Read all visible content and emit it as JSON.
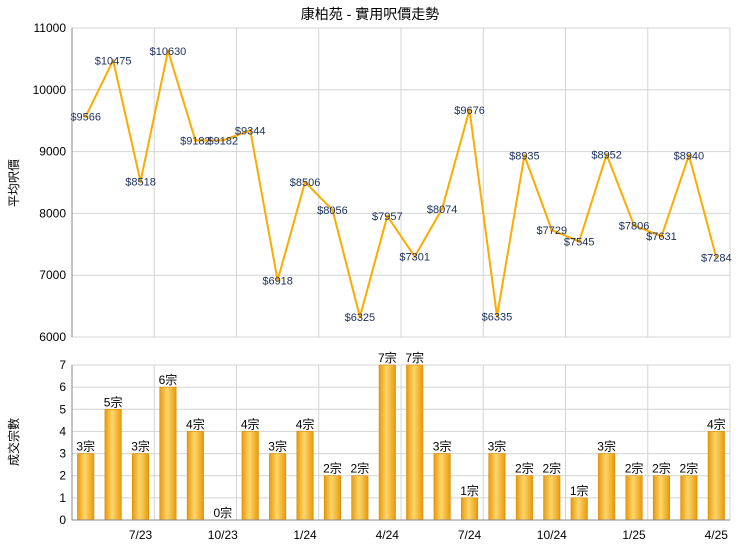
{
  "chart_data": [
    {
      "type": "line",
      "title": "康柏苑 - 實用呎價走勢",
      "ylabel": "平均呎價",
      "ylim": [
        6000,
        11000
      ],
      "yticks": [
        6000,
        7000,
        8000,
        9000,
        10000,
        11000
      ],
      "x_ticks": [
        "7/23",
        "10/23",
        "1/24",
        "4/24",
        "7/24",
        "10/24",
        "1/25",
        "4/25"
      ],
      "grid": true,
      "color": "#ffaa00",
      "values": [
        9566,
        10475,
        8518,
        10630,
        9182,
        9182,
        9344,
        6918,
        8506,
        8056,
        6325,
        7957,
        7301,
        8074,
        9676,
        6335,
        8935,
        7729,
        7545,
        8952,
        7806,
        7631,
        8940,
        7284
      ],
      "labels": [
        "$9566",
        "$10475",
        "$8518",
        "$10630",
        "$9182",
        "$9182",
        "$9344",
        "$6918",
        "$8506",
        "$8056",
        "$6325",
        "$7957",
        "$7301",
        "$8074",
        "$9676",
        "$6335",
        "$8935",
        "$7729",
        "$7545",
        "$8952",
        "$7806",
        "$7631",
        "$8940",
        "$7284"
      ]
    },
    {
      "type": "bar",
      "ylabel": "成交宗數",
      "ylim": [
        0,
        7
      ],
      "yticks": [
        0,
        1,
        2,
        3,
        4,
        5,
        6,
        7
      ],
      "x_ticks": [
        "7/23",
        "10/23",
        "1/24",
        "4/24",
        "7/24",
        "10/24",
        "1/25",
        "4/25"
      ],
      "grid": true,
      "color": "#f5b92e",
      "values": [
        3,
        5,
        3,
        6,
        4,
        0,
        4,
        3,
        4,
        2,
        2,
        7,
        7,
        3,
        1,
        3,
        2,
        2,
        1,
        3,
        2,
        2,
        2,
        4
      ],
      "labels": [
        "3宗",
        "5宗",
        "3宗",
        "6宗",
        "4宗",
        "0宗",
        "4宗",
        "3宗",
        "4宗",
        "2宗",
        "2宗",
        "7宗",
        "7宗",
        "3宗",
        "1宗",
        "3宗",
        "2宗",
        "2宗",
        "1宗",
        "3宗",
        "2宗",
        "2宗",
        "2宗",
        "4宗"
      ]
    }
  ]
}
